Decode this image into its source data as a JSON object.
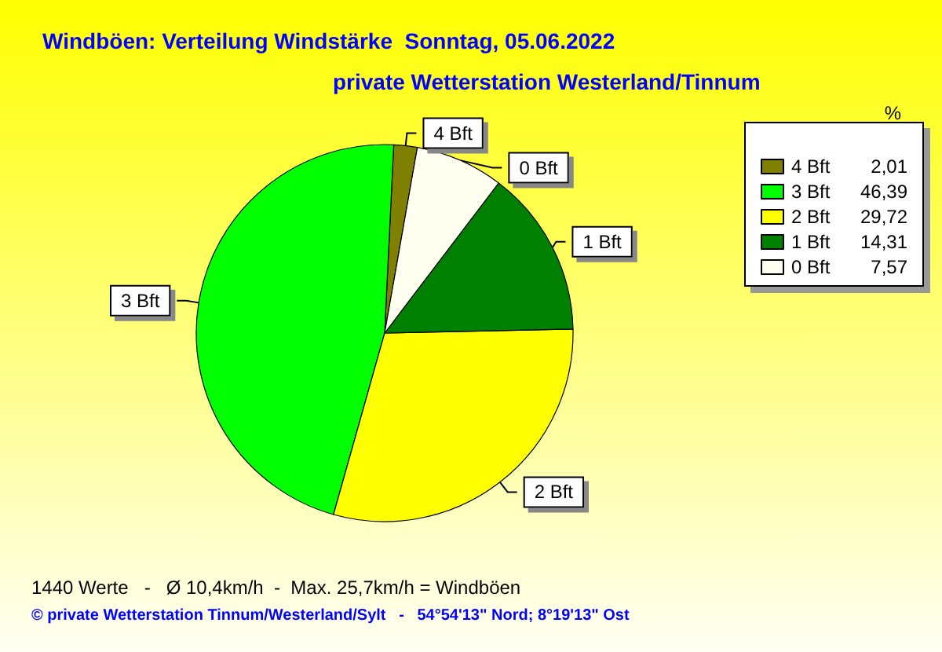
{
  "chart_data": {
    "type": "pie",
    "title": "Windböen: Verteilung Windstärke  Sonntag, 05.06.2022",
    "subtitle": "private Wetterstation Westerland/Tinnum",
    "legend_title": "%",
    "categories": [
      "4 Bft",
      "3 Bft",
      "2 Bft",
      "1 Bft",
      "0 Bft"
    ],
    "values": [
      2.01,
      46.39,
      29.72,
      14.31,
      7.57
    ],
    "colors": [
      "#808000",
      "#00ff00",
      "#ffff00",
      "#008000",
      "#fffff0"
    ],
    "value_labels": [
      "2,01",
      "46,39",
      "29,72",
      "14,31",
      "7,57"
    ],
    "legend": "top right",
    "annotations": [
      "1440 Werte   -   Ø 10,4km/h  -  Max. 25,7km/h = Windböen",
      "© private Wetterstation Tinnum/Westerland/Sylt   -   54°54'13\" Nord; 8°19'13\" Ost"
    ]
  }
}
